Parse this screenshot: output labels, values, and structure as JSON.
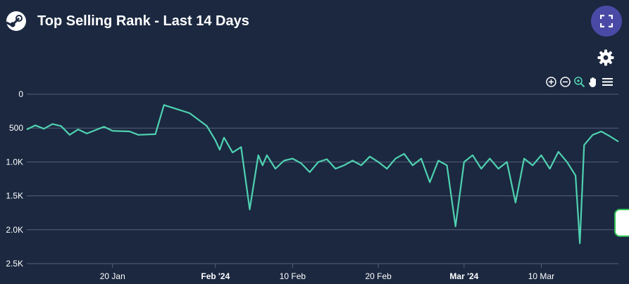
{
  "header": {
    "title": "Top Selling Rank - Last 14 Days",
    "logo_icon": "steam-logo-icon",
    "expand_icon": "fullscreen-icon",
    "settings_icon": "gear-icon"
  },
  "toolbar": {
    "icons": [
      "zoom-in-icon",
      "zoom-out-icon",
      "selection-zoom-icon",
      "pan-hand-icon",
      "menu-icon"
    ]
  },
  "colors": {
    "background": "#1b2840",
    "line": "#4fd1b0",
    "grid": "#56607a",
    "active_tool": "#4fd1b0",
    "expand_button": "#4a4aa6"
  },
  "chart_data": {
    "type": "line",
    "title": "Top Selling Rank - Last 14 Days",
    "y_reversed": true,
    "ylim": [
      0,
      2500
    ],
    "y_ticks": [
      0,
      500,
      1000,
      1500,
      2000,
      2500
    ],
    "y_tick_labels": [
      "0",
      "500",
      "1.0K",
      "1.5K",
      "2.0K",
      "2.5K"
    ],
    "xlim": [
      "2024-01-10",
      "2024-03-19"
    ],
    "x_ticks": [
      "2024-01-20",
      "2024-02-01",
      "2024-02-10",
      "2024-02-20",
      "2024-03-01",
      "2024-03-10"
    ],
    "x_tick_labels": [
      "20 Jan",
      "Feb '24",
      "10 Feb",
      "20 Feb",
      "Mar '24",
      "10 Mar"
    ],
    "grid": true,
    "series": [
      {
        "x": [
          "2024-01-10",
          "2024-01-11",
          "2024-01-12",
          "2024-01-13",
          "2024-01-14",
          "2024-01-15",
          "2024-01-16",
          "2024-01-17",
          "2024-01-18",
          "2024-01-19",
          "2024-01-20",
          "2024-01-22",
          "2024-01-23",
          "2024-01-25",
          "2024-01-26",
          "2024-01-29",
          "2024-01-31",
          "2024-02-01",
          "2024-02-01T12:00",
          "2024-02-02",
          "2024-02-03",
          "2024-02-04",
          "2024-02-05",
          "2024-02-06",
          "2024-02-06T12:00",
          "2024-02-07",
          "2024-02-08",
          "2024-02-09",
          "2024-02-10",
          "2024-02-11",
          "2024-02-12",
          "2024-02-13",
          "2024-02-14",
          "2024-02-15",
          "2024-02-16",
          "2024-02-17",
          "2024-02-18",
          "2024-02-19",
          "2024-02-20",
          "2024-02-21",
          "2024-02-22",
          "2024-02-23",
          "2024-02-24",
          "2024-02-25",
          "2024-02-26",
          "2024-02-27",
          "2024-02-28",
          "2024-02-29",
          "2024-03-01",
          "2024-03-02",
          "2024-03-03",
          "2024-03-04",
          "2024-03-05",
          "2024-03-06",
          "2024-03-07",
          "2024-03-08",
          "2024-03-09",
          "2024-03-10",
          "2024-03-11",
          "2024-03-12",
          "2024-03-13",
          "2024-03-14",
          "2024-03-14T12:00",
          "2024-03-15",
          "2024-03-16",
          "2024-03-17",
          "2024-03-18",
          "2024-03-19"
        ],
        "values": [
          520,
          460,
          510,
          440,
          470,
          600,
          520,
          580,
          530,
          480,
          540,
          550,
          600,
          590,
          160,
          280,
          470,
          680,
          820,
          640,
          860,
          780,
          1700,
          900,
          1050,
          900,
          1100,
          980,
          950,
          1020,
          1150,
          1000,
          960,
          1100,
          1050,
          980,
          1050,
          920,
          1000,
          1100,
          950,
          880,
          1050,
          950,
          1300,
          980,
          1050,
          1950,
          1000,
          900,
          1100,
          950,
          1100,
          1000,
          1600,
          950,
          1050,
          900,
          1100,
          850,
          1000,
          1200,
          2200,
          750,
          600,
          550,
          620,
          700
        ]
      }
    ]
  }
}
